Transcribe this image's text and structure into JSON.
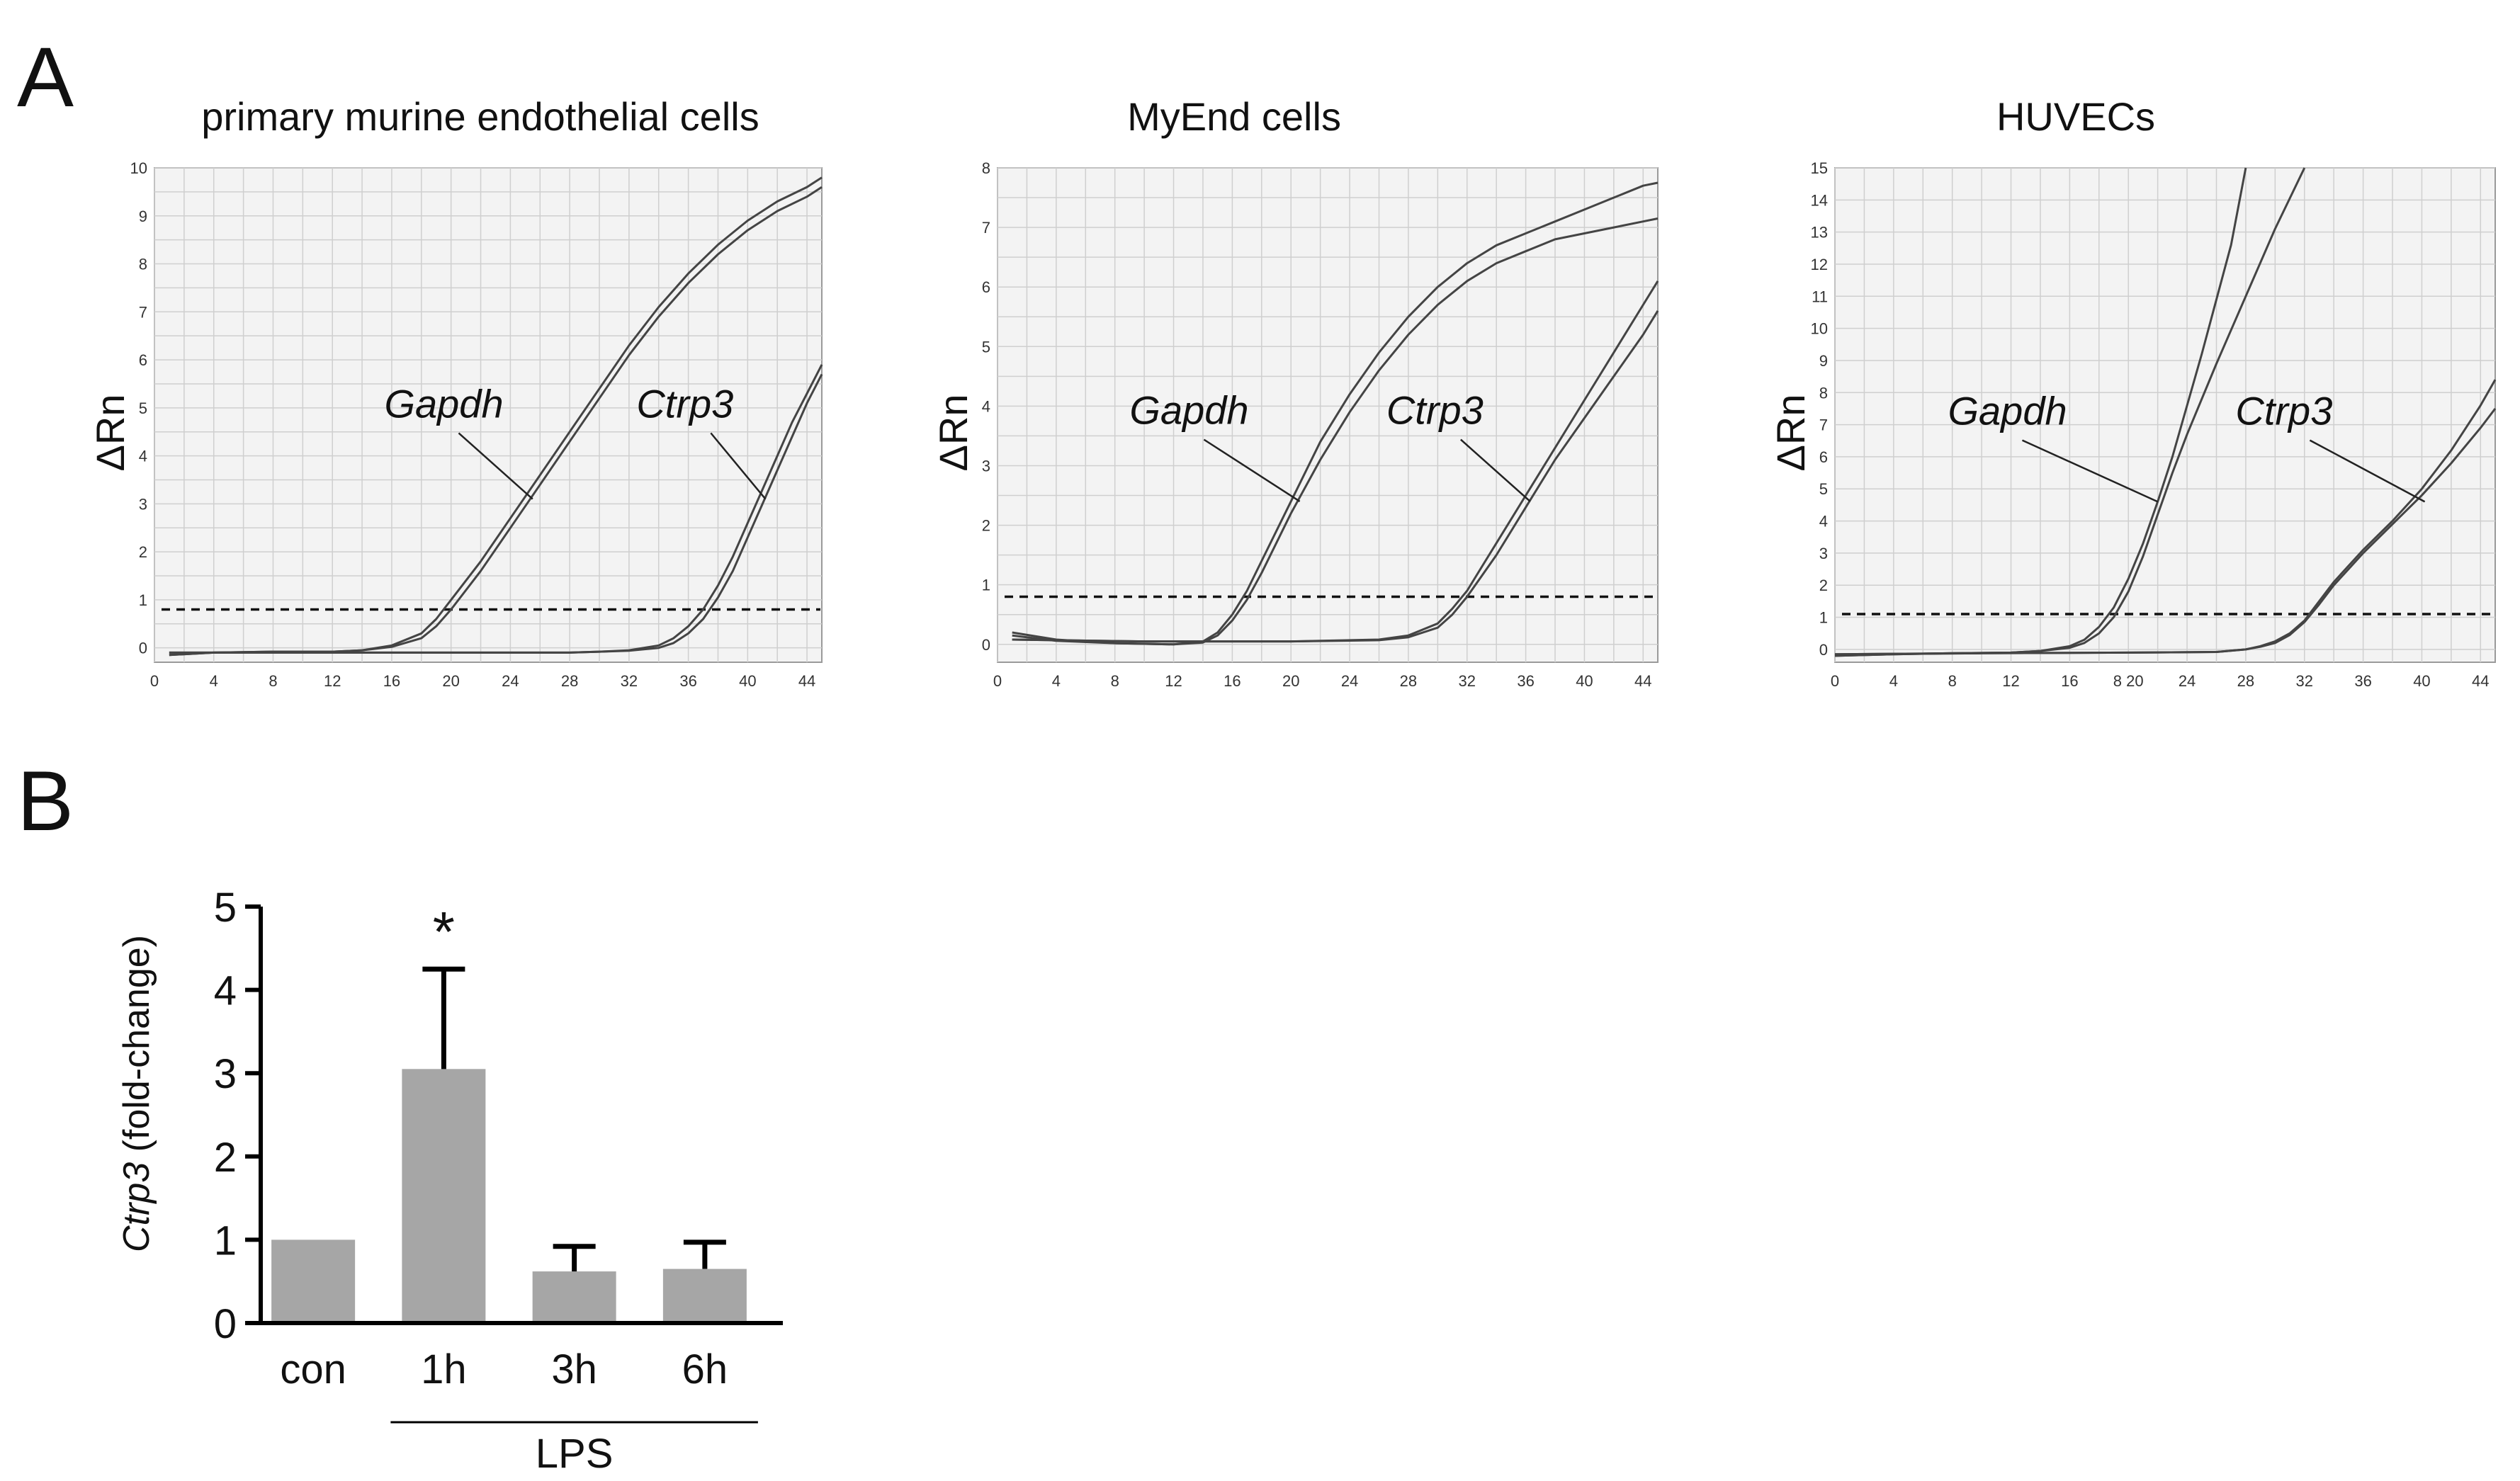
{
  "figure": {
    "panel_a_label": "A",
    "panel_b_label": "B"
  },
  "chart_data": [
    {
      "type": "line",
      "title": "primary murine endothelial cells",
      "ylabel": "ΔRn",
      "xlabel": "",
      "xlim": [
        0,
        45
      ],
      "ylim": [
        -0.3,
        10
      ],
      "xticks": [
        0,
        4,
        8,
        12,
        16,
        20,
        24,
        28,
        32,
        36,
        40,
        44
      ],
      "yticks": [
        0,
        1,
        2,
        3,
        4,
        5,
        6,
        7,
        8,
        9,
        10
      ],
      "ytick_labels": [
        "0",
        "1",
        "2",
        "3",
        "4",
        "5",
        "6",
        "7",
        "8",
        "9",
        "10"
      ],
      "threshold": 0.8,
      "annotations": [
        {
          "text": "Gapdh",
          "x": 15.5,
          "y": 4.8,
          "tx": 25.5,
          "ty": 3.1
        },
        {
          "text": "Ctrp3",
          "x": 32.5,
          "y": 4.8,
          "tx": 41.2,
          "ty": 3.1
        }
      ],
      "series": [
        {
          "name": "Gapdh",
          "x": [
            1,
            4,
            8,
            12,
            14,
            16,
            18,
            19,
            20,
            22,
            24,
            26,
            28,
            30,
            32,
            34,
            36,
            38,
            40,
            42,
            44,
            45
          ],
          "values": [
            -0.15,
            -0.1,
            -0.08,
            -0.08,
            -0.05,
            0.05,
            0.3,
            0.6,
            1.0,
            1.8,
            2.7,
            3.6,
            4.5,
            5.4,
            6.3,
            7.1,
            7.8,
            8.4,
            8.9,
            9.3,
            9.6,
            9.8
          ]
        },
        {
          "name": "Gapdh",
          "x": [
            1,
            4,
            8,
            12,
            14,
            16,
            18,
            19,
            20,
            22,
            24,
            26,
            28,
            30,
            32,
            34,
            36,
            38,
            40,
            42,
            44,
            45
          ],
          "values": [
            -0.15,
            -0.1,
            -0.08,
            -0.08,
            -0.05,
            0.02,
            0.2,
            0.45,
            0.8,
            1.6,
            2.5,
            3.4,
            4.3,
            5.2,
            6.1,
            6.9,
            7.6,
            8.2,
            8.7,
            9.1,
            9.4,
            9.6
          ]
        },
        {
          "name": "Ctrp3",
          "x": [
            1,
            10,
            20,
            28,
            30,
            32,
            34,
            35,
            36,
            37,
            38,
            39,
            40,
            41,
            42,
            43,
            44,
            45
          ],
          "values": [
            -0.1,
            -0.1,
            -0.1,
            -0.1,
            -0.08,
            -0.05,
            0.05,
            0.2,
            0.45,
            0.8,
            1.3,
            1.9,
            2.6,
            3.3,
            4.0,
            4.7,
            5.3,
            5.9
          ]
        },
        {
          "name": "Ctrp3",
          "x": [
            1,
            10,
            20,
            28,
            30,
            32,
            34,
            35,
            36,
            37,
            38,
            39,
            40,
            41,
            42,
            43,
            44,
            45
          ],
          "values": [
            -0.1,
            -0.1,
            -0.1,
            -0.1,
            -0.08,
            -0.06,
            0.0,
            0.1,
            0.3,
            0.6,
            1.05,
            1.6,
            2.3,
            3.0,
            3.7,
            4.4,
            5.1,
            5.7
          ]
        }
      ]
    },
    {
      "type": "line",
      "title": "MyEnd cells",
      "ylabel": "ΔRn",
      "xlabel": "",
      "xlim": [
        0,
        45
      ],
      "ylim": [
        -0.3,
        8
      ],
      "xticks": [
        0,
        4,
        8,
        12,
        16,
        20,
        24,
        28,
        32,
        36,
        40,
        44
      ],
      "yticks": [
        0,
        1,
        2,
        3,
        4,
        5,
        6,
        7,
        8
      ],
      "ytick_labels": [
        "0",
        "1",
        "2",
        "3",
        "4",
        "5",
        "6",
        "7",
        "8"
      ],
      "threshold": 0.8,
      "annotations": [
        {
          "text": "Gapdh",
          "x": 9,
          "y": 3.7,
          "tx": 20.6,
          "ty": 2.4
        },
        {
          "text": "Ctrp3",
          "x": 26.5,
          "y": 3.7,
          "tx": 36.3,
          "ty": 2.4
        }
      ],
      "series": [
        {
          "name": "Gapdh",
          "x": [
            1,
            4,
            8,
            12,
            14,
            15,
            16,
            17,
            18,
            20,
            22,
            24,
            26,
            28,
            30,
            32,
            34,
            36,
            38,
            40,
            42,
            44,
            45
          ],
          "values": [
            0.2,
            0.08,
            0.02,
            0.0,
            0.05,
            0.2,
            0.5,
            0.9,
            1.4,
            2.4,
            3.4,
            4.2,
            4.9,
            5.5,
            6.0,
            6.4,
            6.7,
            6.9,
            7.1,
            7.3,
            7.5,
            7.7,
            7.75
          ]
        },
        {
          "name": "Gapdh",
          "x": [
            1,
            4,
            8,
            12,
            14,
            15,
            16,
            17,
            18,
            20,
            22,
            24,
            26,
            28,
            30,
            32,
            34,
            36,
            38,
            40,
            42,
            44,
            45
          ],
          "values": [
            0.15,
            0.06,
            0.02,
            0.0,
            0.03,
            0.15,
            0.4,
            0.75,
            1.2,
            2.2,
            3.1,
            3.9,
            4.6,
            5.2,
            5.7,
            6.1,
            6.4,
            6.6,
            6.8,
            6.9,
            7.0,
            7.1,
            7.15
          ]
        },
        {
          "name": "Ctrp3",
          "x": [
            1,
            10,
            20,
            26,
            28,
            30,
            31,
            32,
            33,
            34,
            35,
            36,
            38,
            40,
            42,
            44,
            45
          ],
          "values": [
            0.08,
            0.05,
            0.05,
            0.08,
            0.15,
            0.35,
            0.6,
            0.9,
            1.3,
            1.7,
            2.1,
            2.5,
            3.3,
            4.1,
            4.9,
            5.7,
            6.1
          ]
        },
        {
          "name": "Ctrp3",
          "x": [
            1,
            10,
            20,
            26,
            28,
            30,
            31,
            32,
            33,
            34,
            35,
            36,
            38,
            40,
            42,
            44,
            45
          ],
          "values": [
            0.08,
            0.05,
            0.05,
            0.07,
            0.12,
            0.28,
            0.5,
            0.8,
            1.15,
            1.5,
            1.9,
            2.3,
            3.1,
            3.8,
            4.5,
            5.2,
            5.6
          ]
        }
      ]
    },
    {
      "type": "line",
      "title": "HUVECs",
      "ylabel": "ΔRn",
      "xlabel": "",
      "xlim": [
        0,
        45
      ],
      "ylim": [
        -0.4,
        15
      ],
      "xticks": [
        0,
        4,
        8,
        12,
        16,
        20,
        24,
        28,
        32,
        36,
        40,
        44
      ],
      "xtick_labels": [
        "0",
        "4",
        "8",
        "12",
        "16",
        "8 20",
        "24",
        "28",
        "32",
        "36",
        "40",
        "44"
      ],
      "yticks": [
        0,
        1,
        2,
        3,
        4,
        5,
        6,
        7,
        8,
        9,
        10,
        11,
        12,
        13,
        14,
        15
      ],
      "ytick_labels": [
        "0",
        "1",
        "2",
        "3",
        "4",
        "5",
        "6",
        "7",
        "8",
        "9",
        "10",
        "11",
        "12",
        "13",
        "14",
        "15"
      ],
      "threshold": 1.1,
      "annotations": [
        {
          "text": "Gapdh",
          "x": 7.7,
          "y": 7.0,
          "tx": 22.0,
          "ty": 4.6
        },
        {
          "text": "Ctrp3",
          "x": 27.3,
          "y": 7.0,
          "tx": 40.2,
          "ty": 4.6
        }
      ],
      "series": [
        {
          "name": "Gapdh",
          "x": [
            0,
            4,
            8,
            12,
            14,
            16,
            17,
            18,
            19,
            20,
            21,
            22,
            23,
            24,
            25,
            26,
            27,
            28
          ],
          "values": [
            -0.2,
            -0.15,
            -0.12,
            -0.1,
            -0.05,
            0.1,
            0.3,
            0.7,
            1.3,
            2.2,
            3.3,
            4.6,
            6.0,
            7.6,
            9.2,
            10.9,
            12.6,
            15.0
          ]
        },
        {
          "name": "Gapdh",
          "x": [
            0,
            4,
            8,
            12,
            14,
            16,
            17,
            18,
            19,
            20,
            21,
            22,
            23,
            24,
            26,
            28,
            30,
            32
          ],
          "values": [
            -0.2,
            -0.15,
            -0.12,
            -0.1,
            -0.05,
            0.05,
            0.2,
            0.5,
            1.0,
            1.8,
            2.9,
            4.2,
            5.5,
            6.7,
            8.9,
            11.0,
            13.1,
            15.0
          ]
        },
        {
          "name": "Ctrp3",
          "x": [
            0,
            10,
            20,
            26,
            28,
            29,
            30,
            31,
            32,
            33,
            34,
            35,
            36,
            38,
            40,
            42,
            44,
            45
          ],
          "values": [
            -0.15,
            -0.12,
            -0.1,
            -0.08,
            0.0,
            0.1,
            0.25,
            0.5,
            0.9,
            1.5,
            2.1,
            2.6,
            3.1,
            4.0,
            5.0,
            6.2,
            7.6,
            8.4
          ]
        },
        {
          "name": "Ctrp3",
          "x": [
            0,
            10,
            20,
            26,
            28,
            29,
            30,
            31,
            32,
            33,
            34,
            35,
            36,
            38,
            40,
            42,
            44,
            45
          ],
          "values": [
            -0.15,
            -0.12,
            -0.1,
            -0.08,
            0.0,
            0.08,
            0.2,
            0.45,
            0.85,
            1.4,
            2.0,
            2.5,
            3.0,
            3.9,
            4.8,
            5.8,
            6.9,
            7.5
          ]
        }
      ]
    },
    {
      "type": "bar",
      "title": "",
      "ylabel_italic": "Ctrp3",
      "ylabel_rest": " (fold-change)",
      "ylim": [
        0,
        5
      ],
      "yticks": [
        0,
        1,
        2,
        3,
        4,
        5
      ],
      "categories": [
        "con",
        "1h",
        "3h",
        "6h"
      ],
      "values": [
        1.0,
        3.05,
        0.62,
        0.65
      ],
      "error": [
        0,
        1.2,
        0.3,
        0.32
      ],
      "significance": [
        "",
        "*",
        "",
        ""
      ],
      "group_label": "LPS",
      "group_span": [
        1,
        3
      ],
      "bar_color": "#a6a6a6"
    }
  ]
}
